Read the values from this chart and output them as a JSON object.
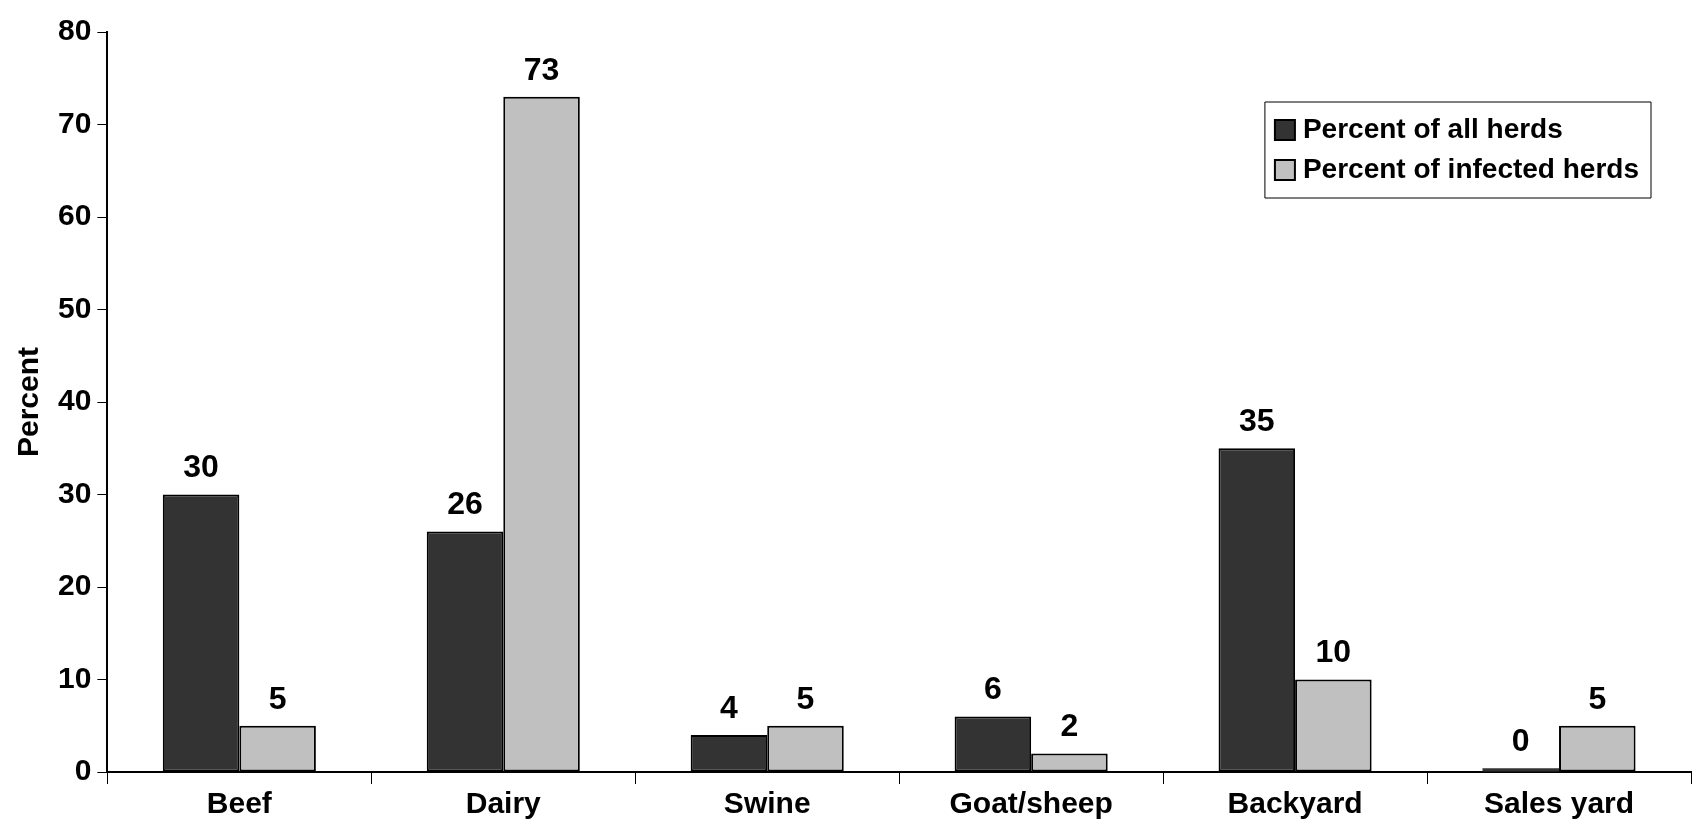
{
  "chart_data": {
    "type": "bar",
    "ylabel": "Percent",
    "categories": [
      "Beef",
      "Dairy",
      "Swine",
      "Goat/sheep",
      "Backyard",
      "Sales yard"
    ],
    "series": [
      {
        "name": "Percent of all herds",
        "color": "#333333",
        "values": [
          30,
          26,
          4,
          6,
          35,
          0.4
        ],
        "value_labels": [
          "30",
          "26",
          "4",
          "6",
          "35",
          "0"
        ]
      },
      {
        "name": "Percent of infected herds",
        "color": "#c0c0c0",
        "values": [
          5,
          73,
          5,
          2,
          10,
          5
        ],
        "value_labels": [
          "5",
          "73",
          "5",
          "2",
          "10",
          "5"
        ]
      }
    ],
    "ylim": [
      0,
      80
    ],
    "yticks": [
      0,
      10,
      20,
      30,
      40,
      50,
      60,
      70,
      80
    ],
    "grid": false,
    "legend": "top right"
  }
}
